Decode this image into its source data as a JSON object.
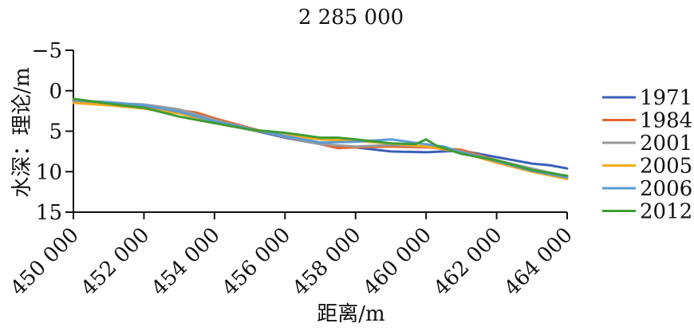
{
  "chart_data": {
    "type": "line",
    "title": "2 285 000",
    "xlabel": "距离/m",
    "ylabel": "水深：理论/m",
    "xlim": [
      450000,
      464000
    ],
    "ylim": [
      -5,
      15
    ],
    "y_inverted": true,
    "x_ticks": [
      "450 000",
      "452 000",
      "454 000",
      "456 000",
      "458 000",
      "460 000",
      "462 000",
      "464 000"
    ],
    "x_tick_values": [
      450000,
      452000,
      454000,
      456000,
      458000,
      460000,
      462000,
      464000
    ],
    "y_ticks": [
      "−5",
      "0",
      "5",
      "10",
      "15"
    ],
    "y_tick_values": [
      -5,
      0,
      5,
      10,
      15
    ],
    "grid": false,
    "legend_position": "right",
    "series": [
      {
        "name": "1971",
        "color": "#3a5fb8",
        "x": [
          450000,
          451000,
          452000,
          453000,
          454000,
          455000,
          456000,
          457000,
          458000,
          459000,
          460000,
          461000,
          462000,
          463000,
          463500,
          464000
        ],
        "y": [
          1.2,
          1.5,
          1.8,
          2.6,
          3.8,
          4.8,
          5.8,
          6.6,
          7.0,
          7.5,
          7.6,
          7.4,
          8.2,
          9.0,
          9.2,
          9.6
        ]
      },
      {
        "name": "1984",
        "color": "#e8642e",
        "x": [
          450000,
          451000,
          452000,
          453000,
          453500,
          454000,
          455000,
          456000,
          457000,
          457500,
          458000,
          459000,
          460000,
          461000,
          462000,
          463000,
          464000
        ],
        "y": [
          1.3,
          1.6,
          2.0,
          2.4,
          2.7,
          3.4,
          4.6,
          5.7,
          6.6,
          7.1,
          7.0,
          6.9,
          7.0,
          7.3,
          8.6,
          9.8,
          10.7
        ]
      },
      {
        "name": "2001",
        "color": "#9a9a9a",
        "x": [
          450000,
          451000,
          452000,
          453000,
          454000,
          455000,
          456000,
          457000,
          458000,
          459000,
          460000,
          461000,
          462000,
          463000,
          464000
        ],
        "y": [
          1.2,
          1.5,
          1.7,
          2.3,
          3.6,
          4.7,
          5.7,
          6.6,
          6.9,
          6.7,
          6.9,
          7.5,
          8.6,
          9.6,
          10.6
        ]
      },
      {
        "name": "2005",
        "color": "#f5a91c",
        "x": [
          450000,
          451000,
          452000,
          453000,
          454000,
          455000,
          456000,
          457000,
          458000,
          459000,
          460000,
          461000,
          462000,
          463000,
          464000
        ],
        "y": [
          1.5,
          1.8,
          2.2,
          2.8,
          3.9,
          4.8,
          5.5,
          6.0,
          6.2,
          6.5,
          6.9,
          7.6,
          8.9,
          10.0,
          10.9
        ]
      },
      {
        "name": "2006",
        "color": "#5b9bd5",
        "x": [
          450000,
          451000,
          452000,
          453000,
          454000,
          455000,
          456000,
          457000,
          458000,
          459000,
          459800,
          460500,
          461000,
          462000,
          463000,
          464000
        ],
        "y": [
          1.2,
          1.4,
          1.8,
          2.6,
          3.8,
          4.7,
          5.6,
          6.4,
          6.3,
          6.0,
          6.5,
          6.9,
          7.6,
          8.7,
          9.9,
          10.7
        ]
      },
      {
        "name": "2012",
        "color": "#3f9c35",
        "x": [
          450000,
          451000,
          452000,
          453000,
          454000,
          455000,
          456000,
          457000,
          457500,
          458000,
          459000,
          459700,
          460000,
          460300,
          461000,
          462000,
          463000,
          464000
        ],
        "y": [
          1.0,
          1.6,
          2.1,
          3.2,
          4.0,
          4.8,
          5.2,
          5.8,
          5.8,
          6.0,
          6.5,
          6.6,
          6.0,
          6.8,
          7.8,
          8.6,
          9.8,
          10.5
        ]
      }
    ]
  }
}
